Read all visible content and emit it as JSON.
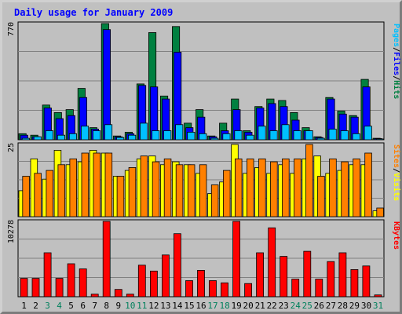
{
  "chart_data": {
    "type": "bar",
    "title": "Daily usage for January 2009",
    "categories": [
      "1",
      "2",
      "3",
      "4",
      "5",
      "6",
      "7",
      "8",
      "9",
      "10",
      "11",
      "12",
      "13",
      "14",
      "15",
      "16",
      "17",
      "18",
      "19",
      "20",
      "21",
      "22",
      "23",
      "24",
      "25",
      "26",
      "27",
      "28",
      "29",
      "30",
      "31"
    ],
    "weekend_days": [
      "3",
      "4",
      "10",
      "11",
      "17",
      "18",
      "24",
      "25",
      "31"
    ],
    "panels": [
      {
        "id": "hits-files-pages",
        "axis_max": 770,
        "axis_labels": [
          "Pages",
          "Files",
          "Hits"
        ],
        "series": [
          {
            "name": "Hits",
            "color": "#008040",
            "values": [
              40,
              30,
              230,
              180,
              200,
              340,
              80,
              770,
              25,
              50,
              370,
              710,
              290,
              750,
              110,
              200,
              25,
              110,
              270,
              60,
              220,
              270,
              260,
              180,
              80,
              20,
              280,
              190,
              160,
              400,
              10
            ]
          },
          {
            "name": "Files",
            "color": "#0000ff",
            "values": [
              30,
              20,
              210,
              140,
              160,
              280,
              70,
              730,
              20,
              40,
              360,
              350,
              270,
              580,
              80,
              150,
              20,
              60,
              200,
              50,
              210,
              240,
              220,
              130,
              60,
              15,
              270,
              170,
              150,
              350,
              8
            ]
          },
          {
            "name": "Pages",
            "color": "#00c0ff",
            "values": [
              10,
              20,
              60,
              30,
              40,
              90,
              60,
              100,
              15,
              30,
              110,
              60,
              60,
              100,
              50,
              40,
              10,
              40,
              60,
              30,
              90,
              60,
              100,
              60,
              60,
              10,
              70,
              60,
              40,
              90,
              5
            ]
          }
        ]
      },
      {
        "id": "visits-sites",
        "axis_max": 25,
        "axis_labels": [
          "Sites",
          "Visits"
        ],
        "series": [
          {
            "name": "Visits",
            "color": "#ffff00",
            "values": [
              9,
              20,
              13,
              23,
              18,
              19,
              23,
              22,
              14,
              16,
              20,
              21,
              18,
              19,
              18,
              15,
              8,
              12,
              25,
              15,
              17,
              15,
              18,
              15,
              20,
              21,
              15,
              16,
              18,
              18,
              2
            ]
          },
          {
            "name": "Sites",
            "color": "#ff8000",
            "values": [
              14,
              15,
              16,
              18,
              20,
              22,
              22,
              22,
              14,
              17,
              21,
              19,
              20,
              18,
              18,
              18,
              11,
              16,
              20,
              20,
              20,
              19,
              20,
              20,
              25,
              14,
              20,
              19,
              20,
              22,
              3
            ]
          }
        ]
      },
      {
        "id": "kbytes",
        "axis_max": 10278,
        "axis_labels": [
          "KBytes"
        ],
        "series": [
          {
            "name": "KBytes",
            "color": "#ff0000",
            "values": [
              2500,
              2500,
              6000,
              2500,
              4500,
              3800,
              350,
              10278,
              1000,
              350,
              4300,
              3500,
              5700,
              8600,
              2200,
              3600,
              2200,
              1900,
              10278,
              1800,
              6000,
              9400,
              5500,
              2400,
              6200,
              2400,
              4800,
              6000,
              3700,
              4200,
              250
            ]
          }
        ]
      }
    ],
    "colors": {
      "background": "#c0c0c0",
      "title": "#0000ff",
      "axis_text": "#000000",
      "weekend_day": "#00805c",
      "weekday": "#000000",
      "gridline": "#808080"
    }
  }
}
